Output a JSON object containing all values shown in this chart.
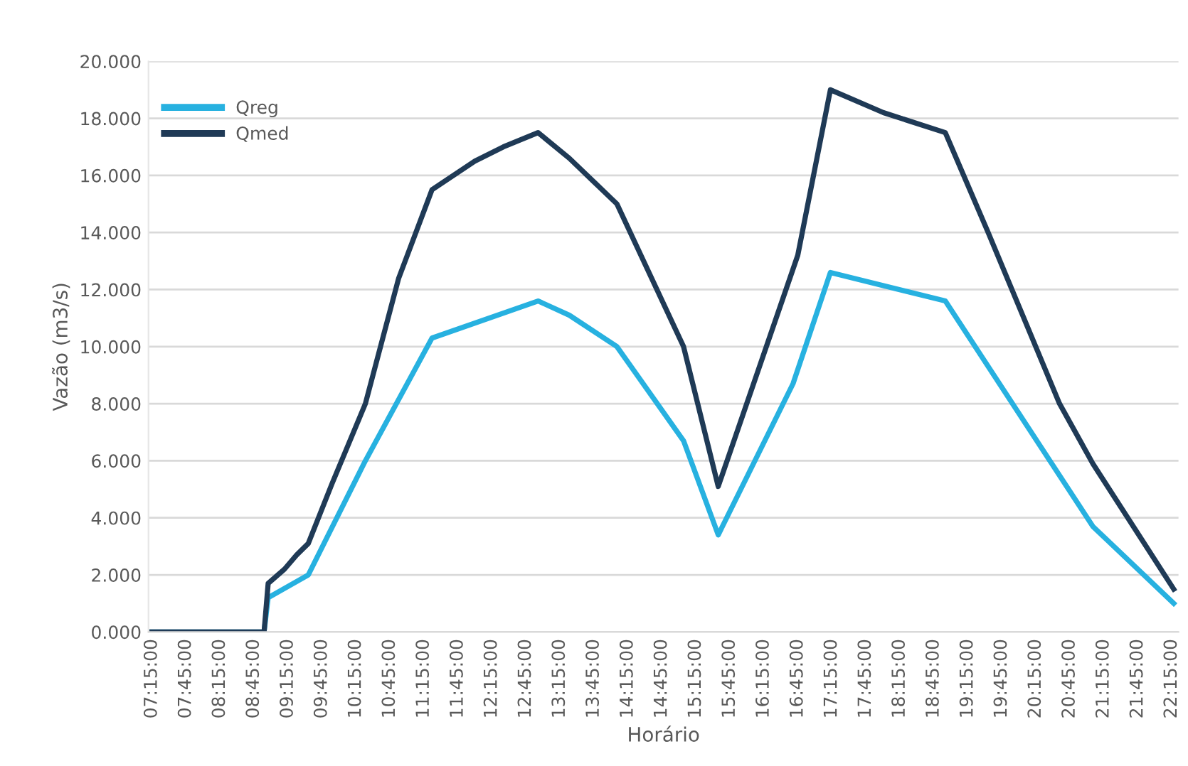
{
  "chart_data": {
    "type": "line",
    "xlabel": "Horário",
    "ylabel": "Vazão (m3/s)",
    "xlim": [
      7.2,
      22.35
    ],
    "ylim": [
      0,
      20
    ],
    "xticks": [
      {
        "value": 7.25,
        "label": "07:15:00"
      },
      {
        "value": 7.75,
        "label": "07:45:00"
      },
      {
        "value": 8.25,
        "label": "08:15:00"
      },
      {
        "value": 8.75,
        "label": "08:45:00"
      },
      {
        "value": 9.25,
        "label": "09:15:00"
      },
      {
        "value": 9.75,
        "label": "09:45:00"
      },
      {
        "value": 10.25,
        "label": "10:15:00"
      },
      {
        "value": 10.75,
        "label": "10:45:00"
      },
      {
        "value": 11.25,
        "label": "11:15:00"
      },
      {
        "value": 11.75,
        "label": "11:45:00"
      },
      {
        "value": 12.25,
        "label": "12:15:00"
      },
      {
        "value": 12.75,
        "label": "12:45:00"
      },
      {
        "value": 13.25,
        "label": "13:15:00"
      },
      {
        "value": 13.75,
        "label": "13:45:00"
      },
      {
        "value": 14.25,
        "label": "14:15:00"
      },
      {
        "value": 14.75,
        "label": "14:45:00"
      },
      {
        "value": 15.25,
        "label": "15:15:00"
      },
      {
        "value": 15.75,
        "label": "15:45:00"
      },
      {
        "value": 16.25,
        "label": "16:15:00"
      },
      {
        "value": 16.75,
        "label": "16:45:00"
      },
      {
        "value": 17.25,
        "label": "17:15:00"
      },
      {
        "value": 17.75,
        "label": "17:45:00"
      },
      {
        "value": 18.25,
        "label": "18:15:00"
      },
      {
        "value": 18.75,
        "label": "18:45:00"
      },
      {
        "value": 19.25,
        "label": "19:15:00"
      },
      {
        "value": 19.75,
        "label": "19:45:00"
      },
      {
        "value": 20.25,
        "label": "20:15:00"
      },
      {
        "value": 20.75,
        "label": "20:45:00"
      },
      {
        "value": 21.25,
        "label": "21:15:00"
      },
      {
        "value": 21.75,
        "label": "21:45:00"
      },
      {
        "value": 22.25,
        "label": "22:15:00"
      }
    ],
    "yticks": [
      {
        "value": 0,
        "label": "0.000"
      },
      {
        "value": 2,
        "label": "2.000"
      },
      {
        "value": 4,
        "label": "4.000"
      },
      {
        "value": 6,
        "label": "6.000"
      },
      {
        "value": 8,
        "label": "8.000"
      },
      {
        "value": 10,
        "label": "10.000"
      },
      {
        "value": 12,
        "label": "12.000"
      },
      {
        "value": 14,
        "label": "14.000"
      },
      {
        "value": 16,
        "label": "16.000"
      },
      {
        "value": 18,
        "label": "18.000"
      },
      {
        "value": 20,
        "label": "20.000"
      }
    ],
    "grid": "y",
    "legend": "top left",
    "marker": "none",
    "line_style": "solid",
    "series": [
      {
        "name": "Qreg",
        "color": "#27b1e0",
        "x": [
          7.25,
          8.9,
          8.96,
          9.55,
          10.39,
          11.37,
          12.93,
          13.39,
          14.09,
          15.07,
          15.58,
          16.68,
          17.23,
          18.92,
          21.09,
          22.28
        ],
        "values": [
          0,
          0,
          1.2,
          2.0,
          6.0,
          10.3,
          11.6,
          11.1,
          10.0,
          6.7,
          3.4,
          8.7,
          12.6,
          11.6,
          3.7,
          1.0
        ]
      },
      {
        "name": "Qmed",
        "color": "#1f3a56",
        "x": [
          7.25,
          8.9,
          8.96,
          9.2,
          9.38,
          9.55,
          9.9,
          10.39,
          10.88,
          11.37,
          12.0,
          12.42,
          12.93,
          13.39,
          14.09,
          15.07,
          15.58,
          16.75,
          17.23,
          18.01,
          18.92,
          19.55,
          20.6,
          21.09,
          22.28
        ],
        "values": [
          0,
          0,
          1.7,
          2.2,
          2.7,
          3.1,
          5.2,
          8.0,
          12.4,
          15.5,
          16.5,
          17.0,
          17.5,
          16.6,
          15.0,
          10.0,
          5.1,
          13.2,
          19.0,
          18.2,
          17.5,
          14.0,
          8.0,
          5.9,
          1.5
        ]
      }
    ]
  }
}
